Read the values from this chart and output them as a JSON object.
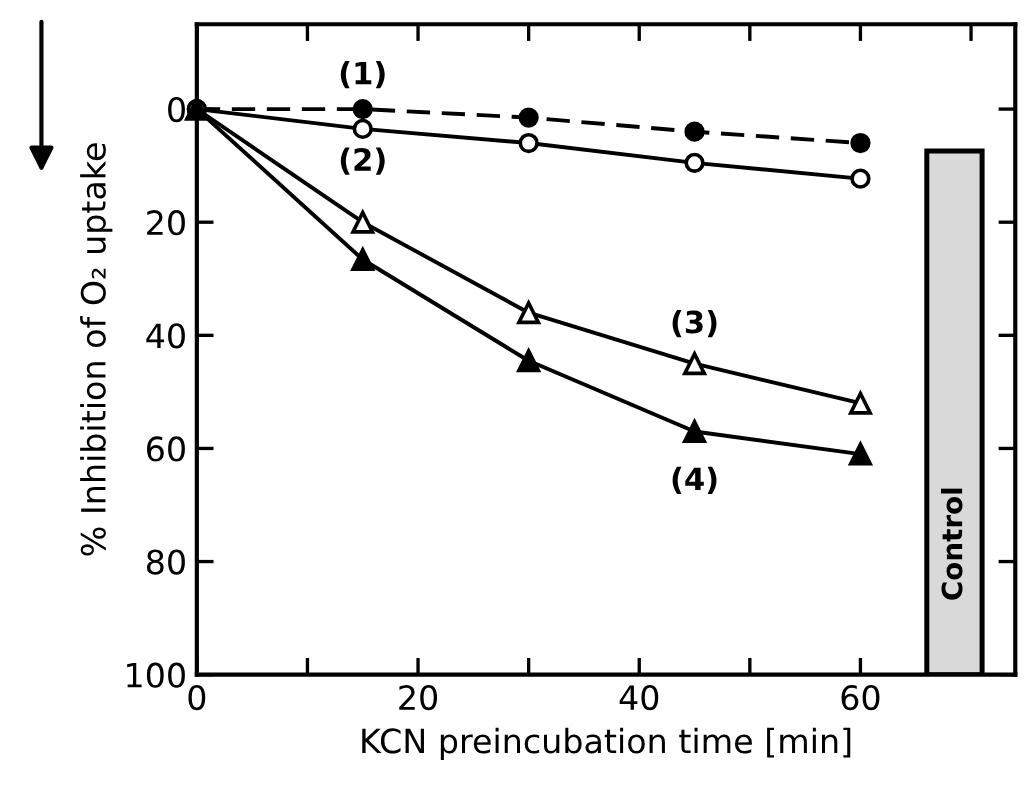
{
  "chart_data": {
    "type": "line",
    "xlabel": "KCN preincubation time [min]",
    "ylabel": "% Inhibition of O₂ uptake",
    "x": [
      0,
      15,
      30,
      45,
      60
    ],
    "series": [
      {
        "name": "(1)",
        "color": "#000000",
        "marker": "circle",
        "line_style": "dashed",
        "values": [
          0,
          0,
          1.5,
          4,
          6
        ]
      },
      {
        "name": "(2)",
        "color": "#000000",
        "marker": "circle",
        "line_style": "solid",
        "values": [
          0,
          3.5,
          6,
          9.5,
          12.3
        ]
      },
      {
        "name": "(3)",
        "color": "#000000",
        "marker": "triangle",
        "line_style": "solid",
        "values": [
          0,
          20,
          36,
          45,
          52
        ]
      },
      {
        "name": "(4)",
        "color": "#000000",
        "marker": "triangle",
        "line_style": "solid",
        "values": [
          0,
          26.6,
          44.5,
          57,
          61
        ]
      },
      {
        "type": "bar",
        "name": "Control",
        "color": "#d9d9d9",
        "x": [
          68.5
        ],
        "base": [
          7.4
        ],
        "values": [
          92.6
        ]
      }
    ],
    "xlim": [
      0,
      74
    ],
    "xticks": [
      0,
      {
        "value": 10,
        "label": null
      },
      20,
      {
        "value": 30,
        "label": null
      },
      40,
      {
        "value": 50,
        "label": null
      },
      60,
      {
        "value": 70,
        "label": null
      }
    ],
    "ylim": [
      100,
      -15
    ],
    "yticks": [
      0,
      20,
      40,
      60,
      80,
      100
    ],
    "grid": false
  }
}
